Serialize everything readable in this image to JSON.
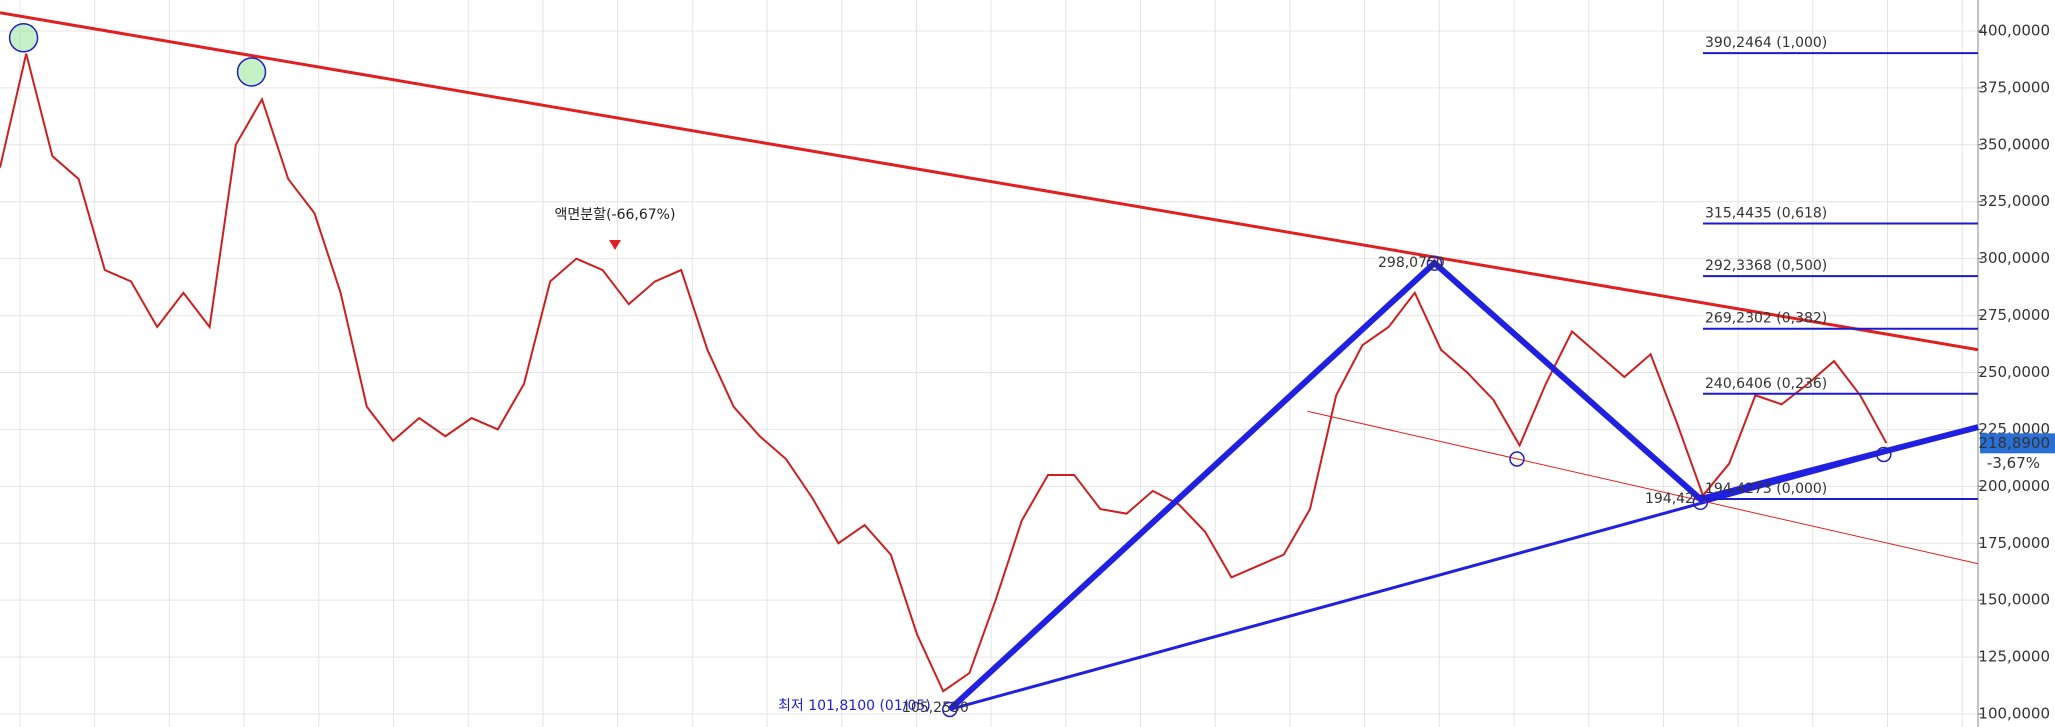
{
  "chart_data": {
    "type": "line",
    "color": "#cc2020",
    "values": [
      340,
      390,
      345,
      335,
      295,
      290,
      270,
      285,
      270,
      350,
      370,
      335,
      320,
      285,
      235,
      220,
      230,
      222,
      230,
      225,
      245,
      290,
      300,
      295,
      280,
      290,
      295,
      260,
      235,
      222,
      212,
      195,
      175,
      183,
      170,
      135,
      110,
      118,
      150,
      185,
      205,
      205,
      190,
      188,
      198,
      192,
      180,
      160,
      165,
      170,
      190,
      240,
      262,
      270,
      285,
      260,
      250,
      238,
      218,
      245,
      268,
      258,
      248,
      258,
      228,
      196,
      210,
      240,
      236,
      245,
      255,
      240,
      219
    ],
    "ylim": [
      94.3,
      413.6
    ],
    "yticks": [
      {
        "value": 100,
        "label": "100,0000"
      },
      {
        "value": 125,
        "label": "125,0000"
      },
      {
        "value": 150,
        "label": "150,0000"
      },
      {
        "value": 175,
        "label": "175,0000"
      },
      {
        "value": 200,
        "label": "200,0000"
      },
      {
        "value": 225,
        "label": "225,0000"
      },
      {
        "value": 250,
        "label": "250,0000"
      },
      {
        "value": 275,
        "label": "275,0000"
      },
      {
        "value": 300,
        "label": "300,0000"
      },
      {
        "value": 325,
        "label": "325,0000"
      },
      {
        "value": 350,
        "label": "350,0000"
      },
      {
        "value": 375,
        "label": "375,0000"
      },
      {
        "value": 400,
        "label": "400,0000"
      }
    ],
    "grid": true,
    "current_price": {
      "value": 218.89,
      "label": "218,8900"
    },
    "change": {
      "value": -3.67,
      "label": "-3,67%"
    },
    "fib_levels": [
      {
        "value": 390.2464,
        "label": "390,2464 (1,000)"
      },
      {
        "value": 315.4435,
        "label": "315,4435 (0,618)"
      },
      {
        "value": 292.3368,
        "label": "292,3368 (0,500)"
      },
      {
        "value": 269.2302,
        "label": "269,2302 (0,382)"
      },
      {
        "value": 240.6406,
        "label": "240,6406 (0,236)"
      },
      {
        "value": 194.4273,
        "label": "194,4273 (0,000)"
      }
    ],
    "trendlines": [
      {
        "color": "#e02020",
        "width": 3,
        "points": [
          [
            0,
            408
          ],
          [
            75.5,
            260
          ]
        ]
      },
      {
        "color": "#2020e0",
        "width": 3,
        "points": [
          [
            36.25,
            102
          ],
          [
            75.5,
            226
          ]
        ]
      },
      {
        "color": "#e02020",
        "width": 1,
        "points": [
          [
            49.9,
            233
          ],
          [
            75.5,
            166
          ]
        ]
      },
      {
        "color": "#2020e0",
        "width": 6,
        "points": [
          [
            36.25,
            102
          ],
          [
            54.75,
            298.075
          ],
          [
            64.9,
            194.4273
          ],
          [
            75.5,
            226
          ]
        ]
      }
    ],
    "annotations": [
      {
        "text": "액면분할(-66,67%)",
        "value": -66.67
      },
      {
        "text": "298,0750",
        "value": 298.075
      },
      {
        "text": "194,42",
        "value": 194.42
      },
      {
        "text": "최저 101,8100 (01/05)",
        "value": 101.81
      },
      {
        "text": "105,2550",
        "value": 105.255
      }
    ]
  }
}
